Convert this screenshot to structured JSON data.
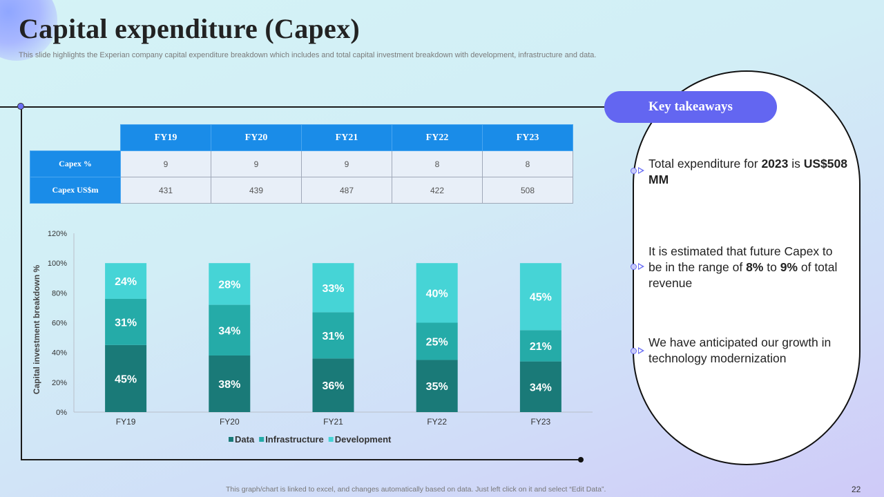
{
  "slide": {
    "title": "Capital expenditure (Capex)",
    "subtitle": "This slide highlights the Experian company capital expenditure breakdown which includes and total capital investment breakdown with development, infrastructure and data.",
    "footer": "This graph/chart is linked to excel,  and changes automatically based on data. Just left click on it and select “Edit Data”.",
    "page_number": "22"
  },
  "table": {
    "headers": [
      "FY19",
      "FY20",
      "FY21",
      "FY22",
      "FY23"
    ],
    "rows": [
      {
        "label": "Capex  %",
        "values": [
          "9",
          "9",
          "9",
          "8",
          "8"
        ]
      },
      {
        "label": "Capex  US$m",
        "values": [
          "431",
          "439",
          "487",
          "422",
          "508"
        ]
      }
    ]
  },
  "takeaways": {
    "title": "Key takeaways",
    "item1_a": "Total expenditure for ",
    "item1_b": "2023",
    "item1_c": " is ",
    "item1_d": "US$508 MM",
    "item2_a": "It is estimated that future Capex to be in the range of ",
    "item2_b": "8%",
    "item2_c": " to ",
    "item2_d": "9%",
    "item2_e": " of total revenue",
    "item3": "We have anticipated our growth in technology modernization"
  },
  "colors": {
    "Data": "#1a7a78",
    "Infrastructure": "#25aba8",
    "Development": "#46d4d6",
    "table_header": "#1a8ce8",
    "accent": "#6366f1"
  },
  "chart_data": {
    "type": "bar",
    "stacked": true,
    "categories": [
      "FY19",
      "FY20",
      "FY21",
      "FY22",
      "FY23"
    ],
    "series": [
      {
        "name": "Data",
        "values": [
          45,
          38,
          36,
          35,
          34
        ]
      },
      {
        "name": "Infrastructure",
        "values": [
          31,
          34,
          31,
          25,
          21
        ]
      },
      {
        "name": "Development",
        "values": [
          24,
          28,
          33,
          40,
          45
        ]
      }
    ],
    "ylabel": "Capital investment breakdown %",
    "xlabel": "",
    "ylim": [
      0,
      120
    ],
    "yticks": [
      "0%",
      "20%",
      "40%",
      "60%",
      "80%",
      "100%",
      "120%"
    ],
    "legend": "bottom",
    "grid": false
  }
}
